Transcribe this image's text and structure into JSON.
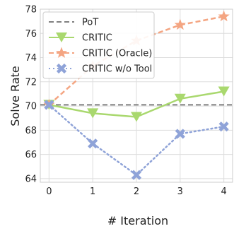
{
  "chart_data": {
    "type": "line",
    "xlabel": "# Iteration",
    "ylabel": "Solve Rate",
    "x": [
      0,
      1,
      2,
      3,
      4
    ],
    "xlim": [
      -0.2,
      4.2
    ],
    "ylim": [
      63.7,
      78
    ],
    "yticks": [
      64,
      66,
      68,
      70,
      72,
      74,
      76,
      78
    ],
    "grid": true,
    "legend_position": "top-left",
    "series": [
      {
        "name": "PoT",
        "style": "dashed-baseline",
        "marker": "none",
        "color": "#808080",
        "values": [
          70.1,
          70.1,
          70.1,
          70.1,
          70.1
        ]
      },
      {
        "name": "CRITIC",
        "style": "solid",
        "marker": "triangle-down",
        "color": "#a9d86e",
        "values": [
          70.1,
          69.4,
          69.1,
          70.6,
          71.2
        ]
      },
      {
        "name": "CRITIC (Oracle)",
        "style": "dashed",
        "marker": "star",
        "color": "#f4a582",
        "values": [
          70.1,
          73.3,
          75.4,
          76.7,
          77.4
        ]
      },
      {
        "name": "CRITIC w/o Tool",
        "style": "dotted",
        "marker": "x",
        "color": "#8fa3d8",
        "values": [
          70.1,
          66.9,
          64.3,
          67.7,
          68.3
        ]
      }
    ]
  }
}
